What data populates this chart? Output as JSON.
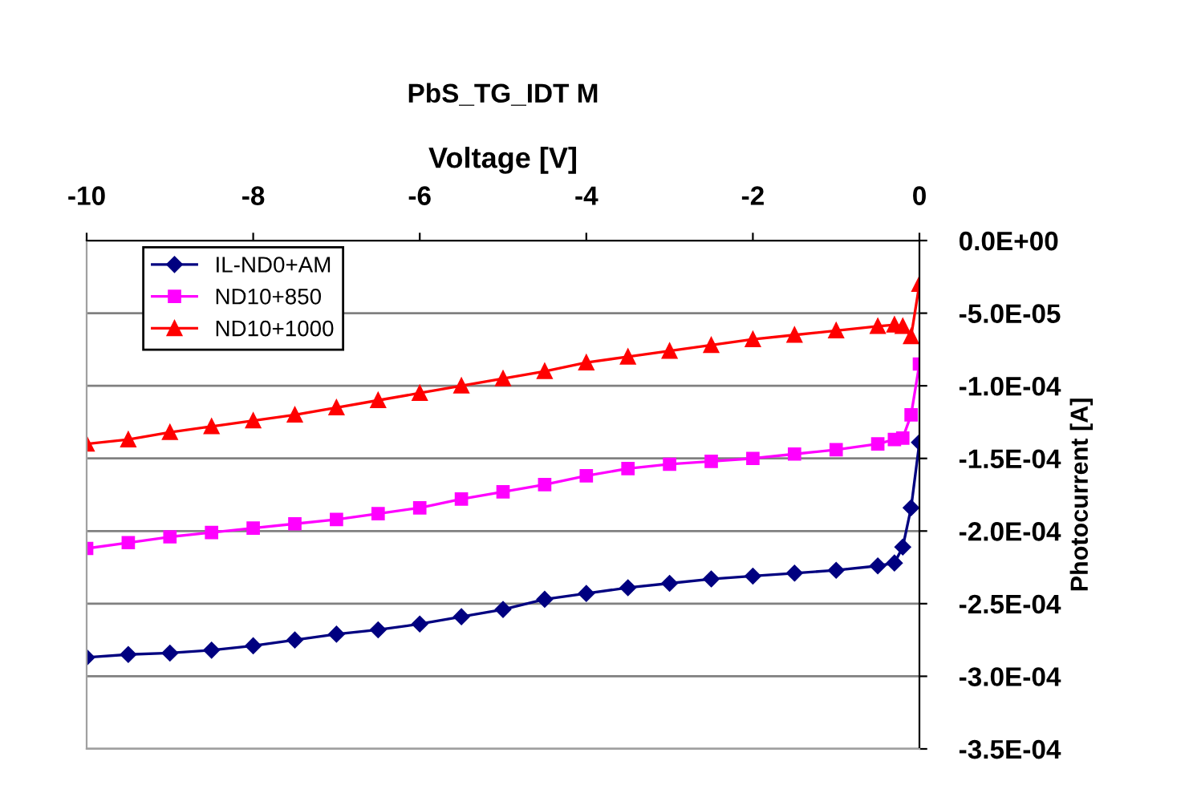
{
  "chart_data": {
    "type": "line",
    "title": "PbS_TG_IDT M",
    "xlabel": "Voltage [V]",
    "ylabel": "Photocurrent [A]",
    "x": [
      -10,
      -9.5,
      -9,
      -8.5,
      -8,
      -7.5,
      -7,
      -6.5,
      -6,
      -5.5,
      -5,
      -4.5,
      -4,
      -3.5,
      -3,
      -2.5,
      -2,
      -1.5,
      -1,
      -0.5,
      -0.3,
      -0.2,
      -0.1,
      0
    ],
    "series": [
      {
        "name": "IL-ND0+AM",
        "color": "#000080",
        "marker": "diamond",
        "values": [
          -0.000287,
          -0.000285,
          -0.000284,
          -0.000282,
          -0.000279,
          -0.000275,
          -0.000271,
          -0.000268,
          -0.000264,
          -0.000259,
          -0.000254,
          -0.000247,
          -0.000243,
          -0.000239,
          -0.000236,
          -0.000233,
          -0.000231,
          -0.000229,
          -0.000227,
          -0.000224,
          -0.000222,
          -0.000211,
          -0.000184,
          -0.000139
        ]
      },
      {
        "name": "ND10+850",
        "color": "#ff00ff",
        "marker": "square",
        "values": [
          -0.000212,
          -0.000208,
          -0.000204,
          -0.000201,
          -0.000198,
          -0.000195,
          -0.000192,
          -0.000188,
          -0.000184,
          -0.000178,
          -0.000173,
          -0.000168,
          -0.000162,
          -0.000157,
          -0.000154,
          -0.000152,
          -0.00015,
          -0.000147,
          -0.000144,
          -0.00014,
          -0.000137,
          -0.000136,
          -0.00012,
          -8.5e-05
        ]
      },
      {
        "name": "ND10+1000",
        "color": "#ff0000",
        "marker": "triangle",
        "values": [
          -0.00014,
          -0.000137,
          -0.000132,
          -0.000128,
          -0.000124,
          -0.00012,
          -0.000115,
          -0.00011,
          -0.000105,
          -0.0001,
          -9.5e-05,
          -9e-05,
          -8.4e-05,
          -8e-05,
          -7.6e-05,
          -7.2e-05,
          -6.8e-05,
          -6.5e-05,
          -6.2e-05,
          -5.9e-05,
          -5.8e-05,
          -5.9e-05,
          -6.6e-05,
          -3e-05
        ]
      }
    ],
    "xlim": [
      -10,
      0
    ],
    "xticks": [
      -10,
      -8,
      -6,
      -4,
      -2,
      0
    ],
    "ylim": [
      -0.00035,
      0
    ],
    "yticks": [
      {
        "value": 0,
        "label": "0.0E+00"
      },
      {
        "value": -5e-05,
        "label": "-5.0E-05"
      },
      {
        "value": -0.0001,
        "label": "-1.0E-04"
      },
      {
        "value": -0.00015,
        "label": "-1.5E-04"
      },
      {
        "value": -0.0002,
        "label": "-2.0E-04"
      },
      {
        "value": -0.00025,
        "label": "-2.5E-04"
      },
      {
        "value": -0.0003,
        "label": "-3.0E-04"
      },
      {
        "value": -0.00035,
        "label": "-3.5E-04"
      }
    ],
    "grid": "y",
    "legend": "top left",
    "line_style": "solid"
  }
}
